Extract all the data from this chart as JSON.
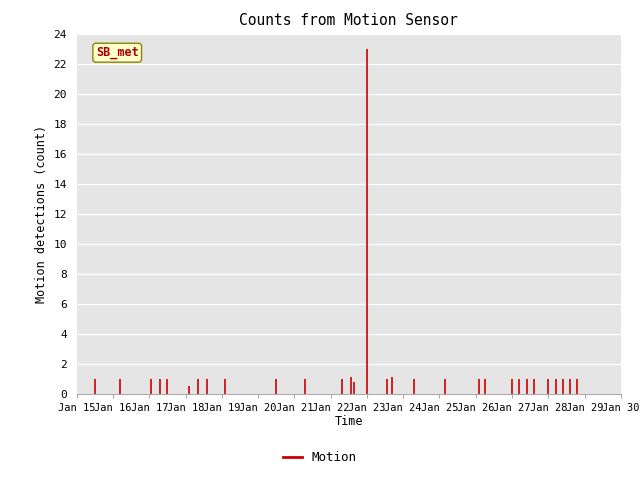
{
  "title": "Counts from Motion Sensor",
  "ylabel": "Motion detections (count)",
  "xlabel": "Time",
  "legend_label": "Motion",
  "annotation_text": "SB_met",
  "line_color": "#cc0000",
  "bg_color": "#e5e5e5",
  "ylim": [
    0,
    24
  ],
  "yticks": [
    0,
    2,
    4,
    6,
    8,
    10,
    12,
    14,
    16,
    18,
    20,
    22,
    24
  ],
  "x_start_day": 15,
  "x_end_day": 30,
  "xtick_days": [
    15,
    16,
    17,
    18,
    19,
    20,
    21,
    22,
    23,
    24,
    25,
    26,
    27,
    28,
    29,
    30
  ],
  "spikes": [
    {
      "day": 15.5,
      "val": 1
    },
    {
      "day": 16.2,
      "val": 1
    },
    {
      "day": 17.05,
      "val": 1
    },
    {
      "day": 17.3,
      "val": 1
    },
    {
      "day": 17.5,
      "val": 1
    },
    {
      "day": 18.1,
      "val": 0.5
    },
    {
      "day": 18.35,
      "val": 1
    },
    {
      "day": 18.6,
      "val": 1
    },
    {
      "day": 19.1,
      "val": 1
    },
    {
      "day": 20.5,
      "val": 1
    },
    {
      "day": 21.3,
      "val": 1
    },
    {
      "day": 22.3,
      "val": 1
    },
    {
      "day": 22.55,
      "val": 1.1
    },
    {
      "day": 22.65,
      "val": 0.8
    },
    {
      "day": 23.0,
      "val": 23
    },
    {
      "day": 23.55,
      "val": 1
    },
    {
      "day": 23.7,
      "val": 1.1
    },
    {
      "day": 24.3,
      "val": 1
    },
    {
      "day": 25.15,
      "val": 1
    },
    {
      "day": 26.1,
      "val": 1
    },
    {
      "day": 26.25,
      "val": 1
    },
    {
      "day": 27.0,
      "val": 1
    },
    {
      "day": 27.2,
      "val": 1
    },
    {
      "day": 27.4,
      "val": 1
    },
    {
      "day": 27.6,
      "val": 1
    },
    {
      "day": 28.0,
      "val": 1
    },
    {
      "day": 28.2,
      "val": 1
    },
    {
      "day": 28.4,
      "val": 1
    },
    {
      "day": 28.6,
      "val": 1
    },
    {
      "day": 28.8,
      "val": 1
    }
  ]
}
